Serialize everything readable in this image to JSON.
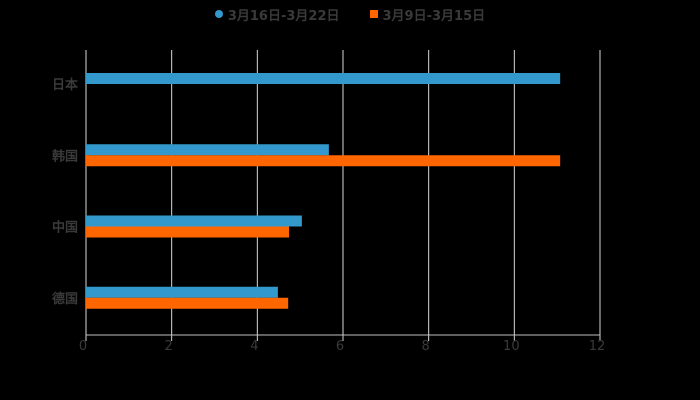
{
  "chart_data": {
    "type": "bar",
    "orientation": "horizontal",
    "title": "",
    "xlabel": "",
    "ylabel": "",
    "categories": [
      "日本",
      "韩国",
      "中国",
      "德国"
    ],
    "series": [
      {
        "name": "3月16日-3月22日",
        "color": "#3399cc",
        "values": [
          11.07,
          5.67,
          5.04,
          4.48
        ]
      },
      {
        "name": "3月9日-3月15日",
        "color": "#ff6600",
        "values": [
          null,
          11.07,
          4.74,
          4.72
        ]
      }
    ],
    "xlim": [
      0,
      12
    ],
    "xticks": [
      "0",
      "2",
      "4",
      "6",
      "8",
      "10",
      "12"
    ],
    "grid": true,
    "legend_position": "top"
  }
}
